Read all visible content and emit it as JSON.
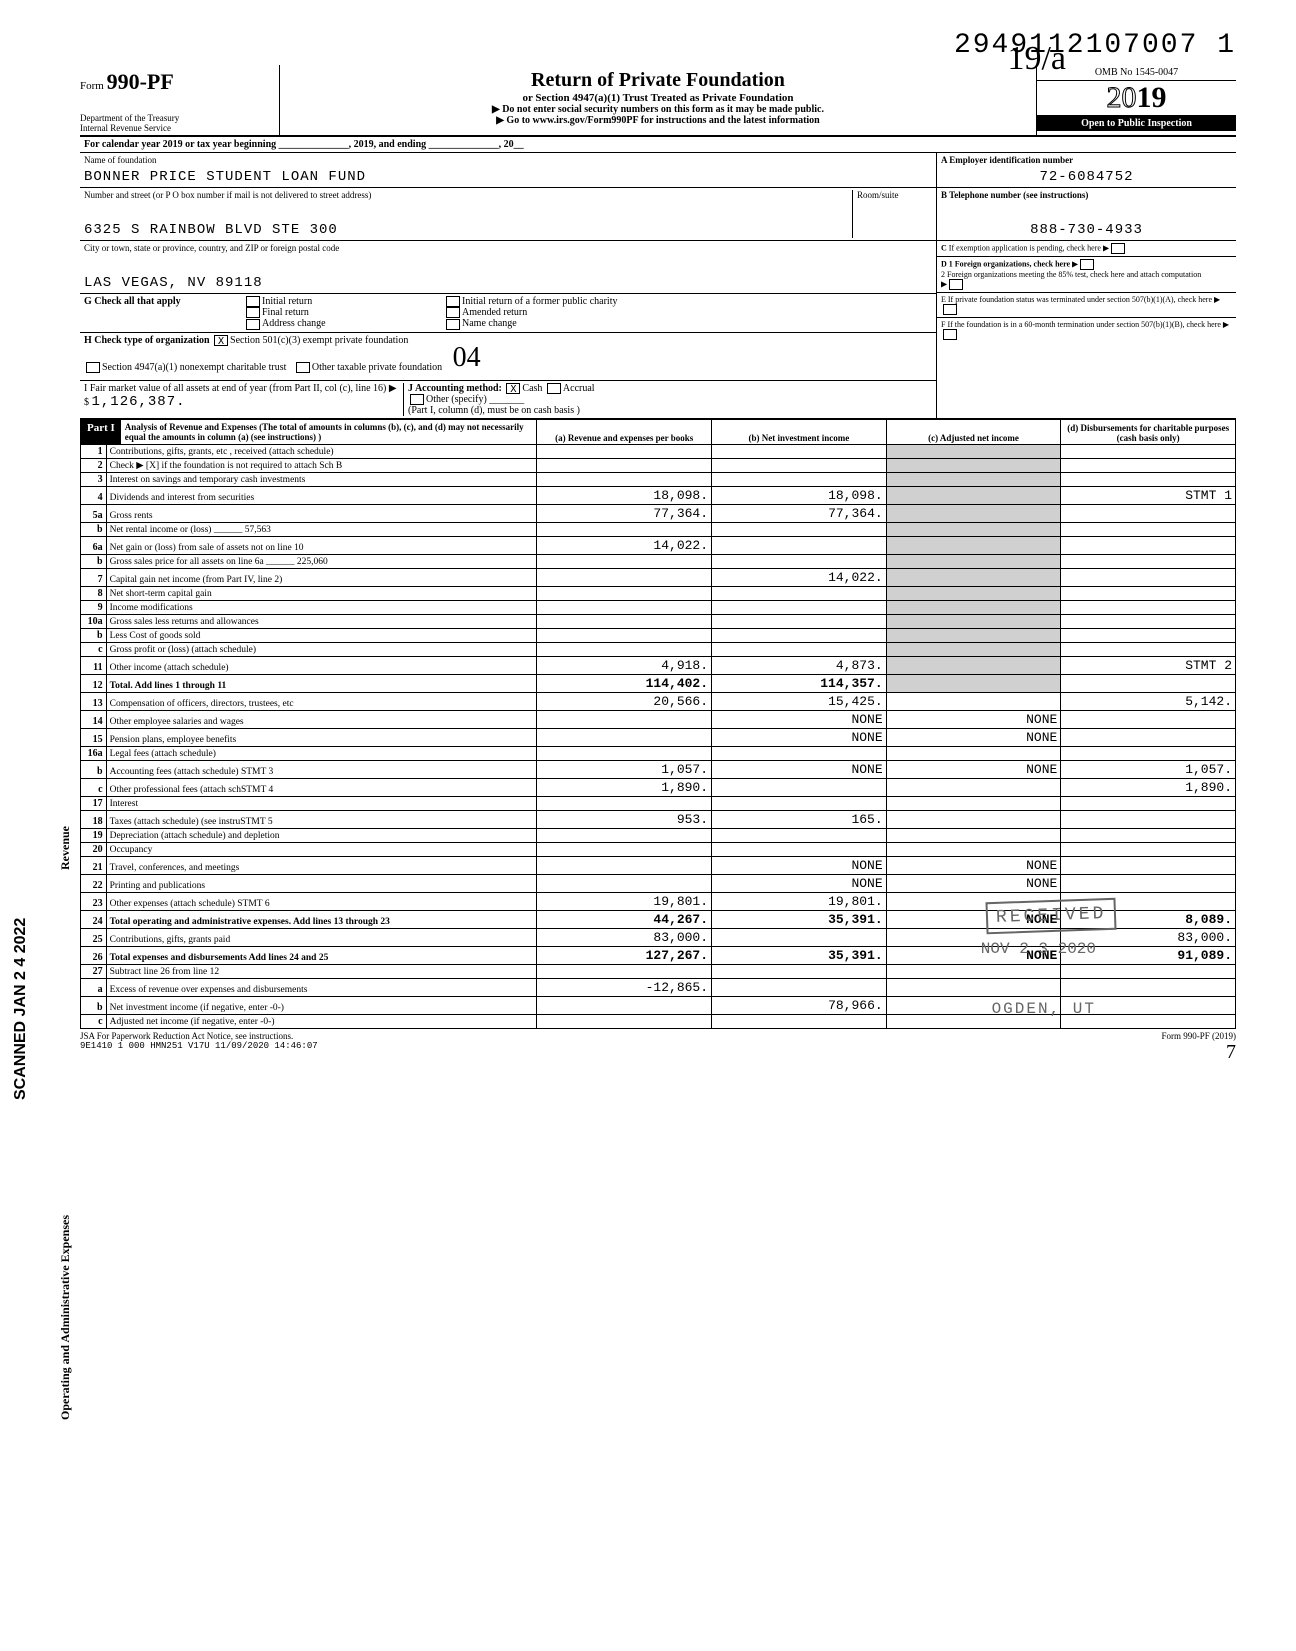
{
  "top_number": "2949112107007 1",
  "form": {
    "label": "Form",
    "number": "990-PF"
  },
  "dept": "Department of the Treasury\nInternal Revenue Service",
  "title": "Return of Private Foundation",
  "subtitle": "or Section 4947(a)(1) Trust Treated as Private Foundation",
  "warn1": "▶ Do not enter social security numbers on this form as it may be made public.",
  "warn2": "▶ Go to www.irs.gov/Form990PF for instructions and the latest information",
  "omb": "OMB No 1545-0047",
  "year": "2019",
  "year_outline": "20",
  "year_bold": "19",
  "inspection": "Open to Public Inspection",
  "cal_year": "For calendar year 2019 or tax year beginning ______________, 2019, and ending ______________, 20__",
  "name_lbl": "Name of foundation",
  "name": "BONNER PRICE STUDENT LOAN FUND",
  "addr_lbl": "Number and street (or P O box number if mail is not delivered to street address)",
  "room_lbl": "Room/suite",
  "addr": "6325 S RAINBOW BLVD STE 300",
  "city_lbl": "City or town, state or province, country, and ZIP or foreign postal code",
  "city": "LAS VEGAS, NV 89118",
  "ein_lbl": "A  Employer identification number",
  "ein": "72-6084752",
  "tel_lbl": "B  Telephone number (see instructions)",
  "tel": "888-730-4933",
  "c_lbl": "C  If exemption application is pending, check here",
  "d1": "D  1 Foreign organizations, check here",
  "d2": "2 Foreign organizations meeting the 85% test, check here and attach computation",
  "e_lbl": "E  If private foundation status was terminated under section 507(b)(1)(A), check here",
  "f_lbl": "F  If the foundation is in a 60-month termination under section 507(b)(1)(B), check here",
  "g_lbl": "G Check all that apply",
  "g_opts": [
    "Initial return",
    "Final return",
    "Address change",
    "Initial return of a former public charity",
    "Amended return",
    "Name change"
  ],
  "h_lbl": "H Check type of organization",
  "h_opts": [
    "X Section 501(c)(3) exempt private foundation",
    "Section 4947(a)(1) nonexempt charitable trust",
    "Other taxable private foundation"
  ],
  "i_lbl": "I Fair market value of all assets at end of year (from Part II, col (c), line 16) ▶ $",
  "i_val": "1,126,387.",
  "j_lbl": "J Accounting method:",
  "j_opts": [
    "X Cash",
    "Accrual",
    "Other (specify) _______"
  ],
  "j_note": "(Part I, column (d), must be on cash basis )",
  "part1_lbl": "Part I",
  "part1_txt": "Analysis of Revenue and Expenses (The total of amounts in columns (b), (c), and (d) may not necessarily equal the amounts in column (a) (see instructions) )",
  "cols": {
    "a": "(a) Revenue and expenses per books",
    "b": "(b) Net investment income",
    "c": "(c) Adjusted net income",
    "d": "(d) Disbursements for charitable purposes (cash basis only)"
  },
  "rows": [
    {
      "n": "1",
      "d": "Contributions, gifts, grants, etc , received (attach schedule)"
    },
    {
      "n": "2",
      "d": "Check ▶ [X] if the foundation is not required to attach Sch B"
    },
    {
      "n": "3",
      "d": "Interest on savings and temporary cash investments"
    },
    {
      "n": "4",
      "d": "Dividends and interest from securities",
      "a": "18,098.",
      "b": "18,098.",
      "dcol": "STMT 1"
    },
    {
      "n": "5a",
      "d": "Gross rents",
      "a": "77,364.",
      "b": "77,364."
    },
    {
      "n": "b",
      "d": "Net rental income or (loss) ______  57,563"
    },
    {
      "n": "6a",
      "d": "Net gain or (loss) from sale of assets not on line 10",
      "a": "14,022."
    },
    {
      "n": "b",
      "d": "Gross sales price for all assets on line 6a ______ 225,060"
    },
    {
      "n": "7",
      "d": "Capital gain net income (from Part IV, line 2)",
      "b": "14,022."
    },
    {
      "n": "8",
      "d": "Net short-term capital gain"
    },
    {
      "n": "9",
      "d": "Income modifications"
    },
    {
      "n": "10a",
      "d": "Gross sales less returns and allowances"
    },
    {
      "n": "b",
      "d": "Less Cost of goods sold"
    },
    {
      "n": "c",
      "d": "Gross profit or (loss) (attach schedule)"
    },
    {
      "n": "11",
      "d": "Other income (attach schedule)",
      "a": "4,918.",
      "b": "4,873.",
      "dcol": "STMT 2"
    },
    {
      "n": "12",
      "d": "Total. Add lines 1 through 11",
      "a": "114,402.",
      "b": "114,357."
    },
    {
      "n": "13",
      "d": "Compensation of officers, directors, trustees, etc",
      "a": "20,566.",
      "b": "15,425.",
      "dcol": "5,142."
    },
    {
      "n": "14",
      "d": "Other employee salaries and wages",
      "b": "NONE",
      "c": "NONE"
    },
    {
      "n": "15",
      "d": "Pension plans, employee benefits",
      "b": "NONE",
      "c": "NONE"
    },
    {
      "n": "16a",
      "d": "Legal fees (attach schedule)"
    },
    {
      "n": "b",
      "d": "Accounting fees (attach schedule) STMT 3",
      "a": "1,057.",
      "b": "NONE",
      "c": "NONE",
      "dcol": "1,057."
    },
    {
      "n": "c",
      "d": "Other professional fees (attach schSTMT 4",
      "a": "1,890.",
      "dcol": "1,890."
    },
    {
      "n": "17",
      "d": "Interest"
    },
    {
      "n": "18",
      "d": "Taxes (attach schedule) (see instruSTMT 5",
      "a": "953.",
      "b": "165."
    },
    {
      "n": "19",
      "d": "Depreciation (attach schedule) and depletion"
    },
    {
      "n": "20",
      "d": "Occupancy"
    },
    {
      "n": "21",
      "d": "Travel, conferences, and meetings",
      "b": "NONE",
      "c": "NONE"
    },
    {
      "n": "22",
      "d": "Printing and publications",
      "b": "NONE",
      "c": "NONE"
    },
    {
      "n": "23",
      "d": "Other expenses (attach schedule) STMT 6",
      "a": "19,801.",
      "b": "19,801."
    },
    {
      "n": "24",
      "d": "Total operating and administrative expenses. Add lines 13 through 23",
      "a": "44,267.",
      "b": "35,391.",
      "c": "NONE",
      "dcol": "8,089."
    },
    {
      "n": "25",
      "d": "Contributions, gifts, grants paid",
      "a": "83,000.",
      "dcol": "83,000."
    },
    {
      "n": "26",
      "d": "Total expenses and disbursements Add lines 24 and 25",
      "a": "127,267.",
      "b": "35,391.",
      "c": "NONE",
      "dcol": "91,089."
    },
    {
      "n": "27",
      "d": "Subtract line 26 from line 12"
    },
    {
      "n": "a",
      "d": "Excess of revenue over expenses and disbursements",
      "a": "-12,865."
    },
    {
      "n": "b",
      "d": "Net investment income (if negative, enter -0-)",
      "b": "78,966."
    },
    {
      "n": "c",
      "d": "Adjusted net income (if negative, enter -0-)"
    }
  ],
  "side_scan": "SCANNED JAN 2 4 2022",
  "vert_revenue": "Revenue",
  "vert_expenses": "Operating and Administrative Expenses",
  "stamp_recv": "RECEIVED",
  "stamp_date": "NOV 2 3 2020",
  "stamp_loc": "OGDEN, UT",
  "hand1": "19/a",
  "hand2": "04",
  "footer_left": "JSA For Paperwork Reduction Act Notice, see instructions.",
  "footer_mid": "9E1410 1 000 HMN251 V17U 11/09/2020 14:46:07",
  "footer_right": "Form 990-PF (2019)",
  "footer_pg": "7"
}
